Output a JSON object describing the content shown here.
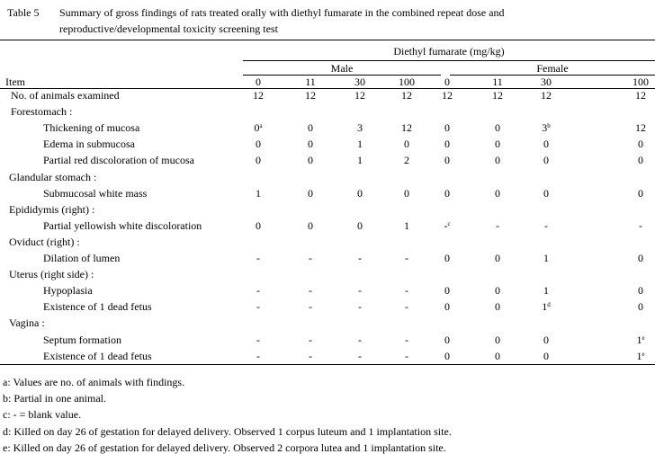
{
  "table_label": "Table 5",
  "title_line1": "Summary of gross findings of rats treated orally with diethyl fumarate in the combined repeat dose and",
  "title_line2": "reproductive/developmental toxicity screening test",
  "header": {
    "compound": "Diethyl fumarate  (mg/kg)",
    "male": "Male",
    "female": "Female",
    "item": "Item",
    "doses": [
      "0",
      "11",
      "30",
      "100",
      "0",
      "11",
      "30",
      "100"
    ]
  },
  "rows": [
    {
      "label": "No. of animals examined",
      "indent": 1,
      "values": [
        "12",
        "12",
        "12",
        "12",
        "12",
        "12",
        "12",
        "12"
      ],
      "sups": [
        "",
        "",
        "",
        "",
        "",
        "",
        "",
        ""
      ]
    },
    {
      "label": "Forestomach :",
      "indent": 1,
      "values": null
    },
    {
      "label": "Thickening of mucosa",
      "indent": 2,
      "values": [
        "0",
        "0",
        "3",
        "12",
        "0",
        "0",
        "3",
        "12"
      ],
      "sups": [
        "a",
        "",
        "",
        "",
        "",
        "",
        "b",
        ""
      ]
    },
    {
      "label": "Edema in submucosa",
      "indent": 2,
      "values": [
        "0",
        "0",
        "1",
        "0",
        "0",
        "0",
        "0",
        "0"
      ],
      "sups": [
        "",
        "",
        "",
        "",
        "",
        "",
        "",
        ""
      ]
    },
    {
      "label": "Partial red discoloration of mucosa",
      "indent": 2,
      "values": [
        "0",
        "0",
        "1",
        "2",
        "0",
        "0",
        "0",
        "0"
      ],
      "sups": [
        "",
        "",
        "",
        "",
        "",
        "",
        "",
        ""
      ]
    },
    {
      "label": "Glandular stomach :",
      "indent": 0,
      "values": null
    },
    {
      "label": "Submucosal white mass",
      "indent": 2,
      "values": [
        "1",
        "0",
        "0",
        "0",
        "0",
        "0",
        "0",
        "0"
      ],
      "sups": [
        "",
        "",
        "",
        "",
        "",
        "",
        "",
        ""
      ]
    },
    {
      "label": "Epididymis  (right)  :",
      "indent": 0,
      "values": null
    },
    {
      "label": "Partial yellowish white discoloration",
      "indent": 2,
      "values": [
        "0",
        "0",
        "0",
        "1",
        "-",
        "-",
        "-",
        "-"
      ],
      "sups": [
        "",
        "",
        "",
        "",
        "c",
        "",
        "",
        ""
      ]
    },
    {
      "label": "Oviduct  (right)  :",
      "indent": 0,
      "values": null
    },
    {
      "label": "Dilation of lumen",
      "indent": 2,
      "values": [
        "-",
        "-",
        "-",
        "-",
        "0",
        "0",
        "1",
        "0"
      ],
      "sups": [
        "",
        "",
        "",
        "",
        "",
        "",
        "",
        ""
      ]
    },
    {
      "label": "Uterus  (right side) :",
      "indent": 0,
      "values": null
    },
    {
      "label": "Hypoplasia",
      "indent": 2,
      "values": [
        "-",
        "-",
        "-",
        "-",
        "0",
        "0",
        "1",
        "0"
      ],
      "sups": [
        "",
        "",
        "",
        "",
        "",
        "",
        "",
        ""
      ]
    },
    {
      "label": "Existence of 1 dead fetus",
      "indent": 2,
      "values": [
        "-",
        "-",
        "-",
        "-",
        "0",
        "0",
        "1",
        "0"
      ],
      "sups": [
        "",
        "",
        "",
        "",
        "",
        "",
        "d",
        ""
      ]
    },
    {
      "label": "Vagina :",
      "indent": 0,
      "values": null
    },
    {
      "label": "Septum formation",
      "indent": 2,
      "values": [
        "-",
        "-",
        "-",
        "-",
        "0",
        "0",
        "0",
        "1"
      ],
      "sups": [
        "",
        "",
        "",
        "",
        "",
        "",
        "",
        "e"
      ]
    },
    {
      "label": "Existence of 1 dead fetus",
      "indent": 2,
      "values": [
        "-",
        "-",
        "-",
        "-",
        "0",
        "0",
        "0",
        "1"
      ],
      "sups": [
        "",
        "",
        "",
        "",
        "",
        "",
        "",
        "e"
      ]
    }
  ],
  "footnotes": [
    "a: Values are no. of animals with findings.",
    "b: Partial in one animal.",
    "c: - = blank value.",
    "d: Killed on day 26 of gestation for delayed delivery.  Observed 1 corpus luteum and 1 implantation site.",
    "e: Killed on day 26 of gestation for delayed delivery.  Observed 2 corpora lutea and 1 implantation site."
  ]
}
